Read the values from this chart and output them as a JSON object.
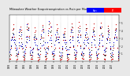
{
  "title": "Milwaukee Weather Evapotranspiration vs Rain per Month (Inches)",
  "title_fontsize": 2.8,
  "background_color": "#e8e8e8",
  "plot_bg": "#ffffff",
  "legend_et_color": "#ff0000",
  "legend_rain_color": "#0000ff",
  "legend_label_et": "ET",
  "legend_label_rain": "Rain",
  "years": [
    1993,
    1994,
    1995,
    1996,
    1997,
    1998,
    1999,
    2000,
    2001,
    2002,
    2003,
    2004,
    2005,
    2006,
    2007
  ],
  "months_per_year": 12,
  "et_values": [
    0.3,
    0.3,
    0.8,
    1.8,
    3.2,
    4.1,
    4.8,
    4.3,
    3.2,
    1.8,
    0.7,
    0.2,
    0.2,
    0.3,
    0.9,
    1.7,
    3.0,
    3.9,
    4.5,
    4.1,
    3.0,
    1.6,
    0.6,
    0.2,
    0.2,
    0.4,
    1.0,
    1.9,
    3.3,
    4.2,
    4.9,
    4.4,
    3.3,
    1.9,
    0.8,
    0.3,
    0.3,
    0.3,
    0.7,
    1.6,
    2.9,
    3.8,
    4.4,
    4.0,
    2.9,
    1.5,
    0.5,
    0.1,
    0.2,
    0.3,
    0.9,
    1.8,
    3.1,
    4.0,
    4.7,
    4.2,
    3.1,
    1.7,
    0.6,
    0.2,
    0.3,
    0.4,
    1.0,
    2.0,
    3.4,
    4.3,
    5.0,
    4.5,
    3.4,
    2.0,
    0.9,
    0.3,
    0.3,
    0.3,
    0.8,
    1.8,
    3.2,
    4.1,
    4.8,
    4.3,
    3.2,
    1.8,
    0.7,
    0.2,
    0.2,
    0.3,
    0.7,
    1.6,
    2.8,
    3.7,
    4.3,
    3.9,
    2.8,
    1.4,
    0.4,
    0.1,
    0.2,
    0.3,
    0.9,
    1.9,
    3.3,
    4.2,
    4.9,
    4.4,
    3.3,
    1.9,
    0.8,
    0.3,
    0.3,
    0.4,
    1.1,
    2.1,
    3.5,
    4.4,
    5.1,
    4.6,
    3.5,
    2.1,
    1.0,
    0.4,
    0.3,
    0.3,
    0.8,
    1.8,
    3.2,
    4.1,
    4.8,
    4.3,
    3.2,
    1.8,
    0.7,
    0.2,
    0.2,
    0.3,
    0.9,
    1.9,
    3.3,
    4.2,
    4.9,
    4.4,
    3.3,
    1.9,
    0.8,
    0.3,
    0.3,
    0.4,
    1.0,
    2.0,
    3.4,
    4.3,
    5.0,
    4.5,
    3.4,
    2.0,
    0.9,
    0.3,
    0.2,
    0.3,
    0.8,
    1.7,
    3.0,
    3.9,
    4.6,
    4.1,
    3.0,
    1.6,
    0.6,
    0.2,
    0.3,
    0.3,
    0.9,
    1.8,
    3.2,
    4.1,
    4.8,
    4.3,
    3.2,
    1.8,
    0.7,
    0.2
  ],
  "rain_values": [
    1.2,
    1.5,
    2.8,
    2.1,
    2.9,
    3.2,
    3.5,
    2.8,
    2.5,
    2.8,
    2.1,
    1.5,
    1.8,
    0.9,
    1.2,
    2.5,
    3.8,
    4.2,
    2.1,
    3.5,
    2.0,
    2.3,
    1.8,
    0.8,
    1.1,
    1.3,
    2.1,
    3.2,
    2.5,
    4.8,
    3.2,
    4.1,
    2.8,
    1.9,
    1.2,
    1.4,
    0.8,
    1.2,
    1.5,
    1.8,
    3.2,
    2.8,
    2.5,
    2.2,
    3.0,
    2.1,
    1.5,
    0.9,
    1.5,
    0.7,
    1.8,
    2.9,
    3.5,
    2.1,
    4.2,
    3.8,
    2.2,
    1.8,
    2.5,
    1.2,
    0.9,
    1.8,
    2.5,
    1.5,
    4.0,
    5.2,
    2.8,
    3.1,
    4.5,
    2.8,
    1.2,
    1.0,
    1.3,
    1.0,
    2.2,
    3.5,
    2.8,
    3.8,
    3.2,
    2.9,
    2.5,
    3.2,
    1.8,
    0.7,
    1.1,
    0.8,
    1.5,
    2.0,
    3.5,
    3.2,
    2.8,
    2.5,
    1.8,
    2.5,
    0.9,
    1.5,
    0.9,
    1.5,
    2.8,
    1.9,
    2.5,
    3.8,
    4.1,
    3.2,
    2.8,
    2.1,
    1.5,
    0.8,
    1.4,
    0.9,
    1.2,
    3.2,
    2.8,
    3.5,
    2.5,
    4.0,
    3.2,
    1.8,
    0.8,
    1.2,
    1.0,
    1.8,
    2.5,
    2.8,
    3.5,
    2.1,
    3.8,
    2.8,
    2.5,
    3.0,
    1.5,
    0.9,
    1.2,
    0.8,
    1.9,
    2.5,
    3.2,
    3.8,
    2.9,
    3.5,
    2.2,
    1.9,
    1.2,
    0.7,
    0.8,
    1.5,
    2.2,
    2.8,
    2.5,
    4.5,
    3.5,
    2.8,
    3.2,
    2.1,
    0.9,
    1.4,
    1.5,
    1.2,
    1.8,
    3.0,
    2.8,
    3.2,
    4.0,
    3.5,
    2.5,
    2.0,
    1.5,
    0.8,
    1.1,
    0.9,
    2.0,
    2.5,
    3.0,
    3.5,
    3.2,
    4.0,
    2.8,
    1.8,
    1.2,
    0.6
  ],
  "ylim": [
    0,
    6
  ],
  "yticks": [
    1,
    2,
    3,
    4,
    5
  ],
  "grid_color": "#aaaaaa",
  "et_color": "#cc0000",
  "rain_color": "#0000cc",
  "avg_color": "#000000",
  "dot_size": 0.8
}
